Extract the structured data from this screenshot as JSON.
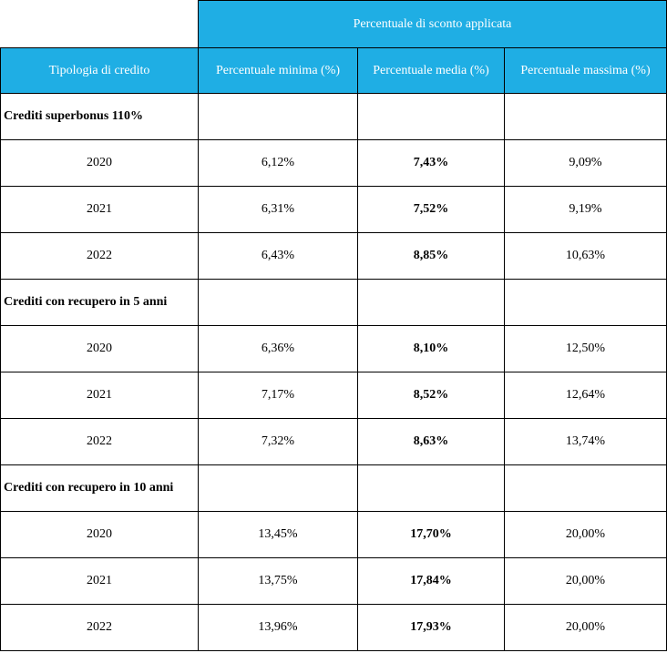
{
  "header": {
    "span_title": "Percentuale di sconto applicata",
    "col_tipologia": "Tipologia di credito",
    "col_minima": "Percentuale minima  (%)",
    "col_media": "Percentuale media (%)",
    "col_massima": "Percentuale massima (%)"
  },
  "groups": [
    {
      "label": "Crediti superbonus 110%",
      "rows": [
        {
          "year": "2020",
          "min": "6,12%",
          "avg": "7,43%",
          "max": "9,09%"
        },
        {
          "year": "2021",
          "min": "6,31%",
          "avg": "7,52%",
          "max": "9,19%"
        },
        {
          "year": "2022",
          "min": "6,43%",
          "avg": "8,85%",
          "max": "10,63%"
        }
      ]
    },
    {
      "label": "Crediti con recupero in 5 anni",
      "rows": [
        {
          "year": "2020",
          "min": "6,36%",
          "avg": "8,10%",
          "max": "12,50%"
        },
        {
          "year": "2021",
          "min": "7,17%",
          "avg": "8,52%",
          "max": "12,64%"
        },
        {
          "year": "2022",
          "min": "7,32%",
          "avg": "8,63%",
          "max": "13,74%"
        }
      ]
    },
    {
      "label": "Crediti con recupero in 10 anni",
      "rows": [
        {
          "year": "2020",
          "min": "13,45%",
          "avg": "17,70%",
          "max": "20,00%"
        },
        {
          "year": "2021",
          "min": "13,75%",
          "avg": "17,84%",
          "max": "20,00%"
        },
        {
          "year": "2022",
          "min": "13,96%",
          "avg": "17,93%",
          "max": "20,00%"
        }
      ]
    }
  ],
  "colors": {
    "header_bg": "#1faee4",
    "header_text": "#ffffff"
  }
}
